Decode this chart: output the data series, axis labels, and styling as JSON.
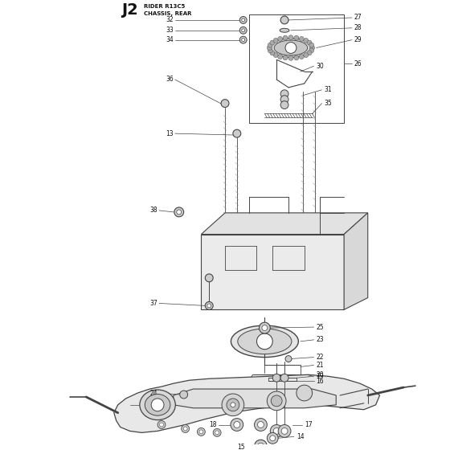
{
  "title_code": "J2",
  "title_line1": "RIDER R13C5",
  "title_line2": "CHASSIS, REAR",
  "bg_color": "#ffffff",
  "line_color": "#444444",
  "text_color": "#111111",
  "fig_width": 5.6,
  "fig_height": 5.6,
  "dpi": 100
}
